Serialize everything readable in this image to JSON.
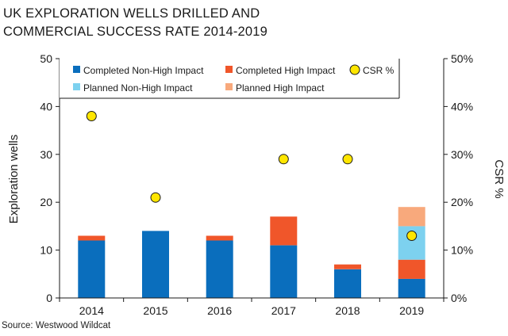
{
  "title_lines": [
    "UK EXPLORATION WELLS DRILLED AND",
    "COMMERCIAL SUCCESS RATE 2014-2019"
  ],
  "source": "Source: Westwood Wildcat",
  "chart_data": {
    "type": "bar",
    "stacked": true,
    "categories": [
      "2014",
      "2015",
      "2016",
      "2017",
      "2018",
      "2019"
    ],
    "series": [
      {
        "name": "Completed Non-High Impact",
        "color": "#0a6ebd",
        "values": [
          12,
          14,
          12,
          11,
          6,
          4
        ]
      },
      {
        "name": "Completed High Impact",
        "color": "#f0562a",
        "values": [
          1,
          0,
          1,
          6,
          1,
          4
        ]
      },
      {
        "name": "Planned Non-High Impact",
        "color": "#7dd1ef",
        "values": [
          0,
          0,
          0,
          0,
          0,
          7
        ]
      },
      {
        "name": "Planned High Impact",
        "color": "#f8a97c",
        "values": [
          0,
          0,
          0,
          0,
          0,
          4
        ]
      }
    ],
    "line_series": {
      "name": "CSR %",
      "axis": "right",
      "marker_color": "#ffe600",
      "values": [
        38,
        21,
        null,
        29,
        29,
        13
      ]
    },
    "ylabel": "Exploration wells",
    "y2label": "CSR %",
    "ylim": [
      0,
      50
    ],
    "y2lim": [
      0,
      50
    ],
    "yticks": [
      "0",
      "10",
      "20",
      "30",
      "40",
      "50"
    ],
    "y2ticks": [
      "0%",
      "10%",
      "20%",
      "30%",
      "40%",
      "50%"
    ],
    "legend_position": "top",
    "grid": false
  }
}
